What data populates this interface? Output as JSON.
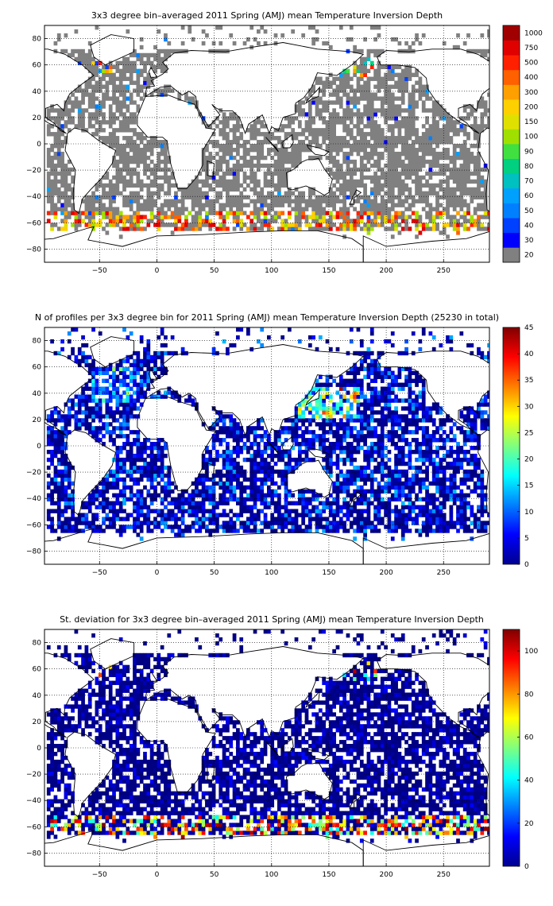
{
  "chart_data": [
    {
      "type": "heatmap",
      "title": "3x3 degree bin–averaged 2011 Spring (AMJ) mean Temperature Inversion Depth",
      "xlim": [
        -98,
        290
      ],
      "ylim": [
        -90,
        90
      ],
      "xticks": [
        -50,
        0,
        50,
        100,
        150,
        200,
        250
      ],
      "yticks": [
        80,
        60,
        40,
        20,
        0,
        -20,
        -40,
        -60,
        -80
      ],
      "grid": true,
      "colorbar": {
        "type": "discrete",
        "labels": [
          "20",
          "30",
          "40",
          "50",
          "60",
          "70",
          "80",
          "90",
          "100",
          "150",
          "200",
          "300",
          "400",
          "500",
          "750",
          "1000"
        ],
        "colors": [
          "#808080",
          "#0000ff",
          "#0040ff",
          "#0080ff",
          "#00a0ff",
          "#00c0c0",
          "#00d080",
          "#40e040",
          "#a0e000",
          "#e0e000",
          "#ffd000",
          "#ffa000",
          "#ff6000",
          "#ff2000",
          "#e00000",
          "#a00000"
        ]
      },
      "dominant_value": "≤20 (gray) over most of the ocean; 100–1000 bins near 60°S and in the North Atlantic"
    },
    {
      "type": "heatmap",
      "title": "N of profiles per 3x3 degree bin for 2011 Spring (AMJ) mean Temperature Inversion Depth  (25230 in total)",
      "xlim": [
        -98,
        290
      ],
      "ylim": [
        -90,
        90
      ],
      "xticks": [
        -50,
        0,
        50,
        100,
        150,
        200,
        250
      ],
      "yticks": [
        80,
        60,
        40,
        20,
        0,
        -20,
        -40,
        -60,
        -80
      ],
      "grid": true,
      "colorbar": {
        "type": "continuous",
        "range": [
          0,
          45
        ],
        "ticks": [
          0,
          5,
          10,
          15,
          20,
          25,
          30,
          35,
          40,
          45
        ]
      },
      "dominant_value": "mostly 0–10 profiles per bin, up to ~45 near Japan and the Kuroshio"
    },
    {
      "type": "heatmap",
      "title": "St. deviation for 3x3 degree bin–averaged 2011 Spring (AMJ) mean Temperature Inversion Depth",
      "xlim": [
        -98,
        290
      ],
      "ylim": [
        -90,
        90
      ],
      "xticks": [
        -50,
        0,
        50,
        100,
        150,
        200,
        250
      ],
      "yticks": [
        80,
        60,
        40,
        20,
        0,
        -20,
        -40,
        -60,
        -80
      ],
      "grid": true,
      "colorbar": {
        "type": "continuous",
        "range": [
          0,
          110
        ],
        "ticks": [
          0,
          20,
          40,
          60,
          80,
          100
        ]
      },
      "dominant_value": "mostly 0–10 (dark blue); high values (60–110) along 55–65°S"
    }
  ]
}
